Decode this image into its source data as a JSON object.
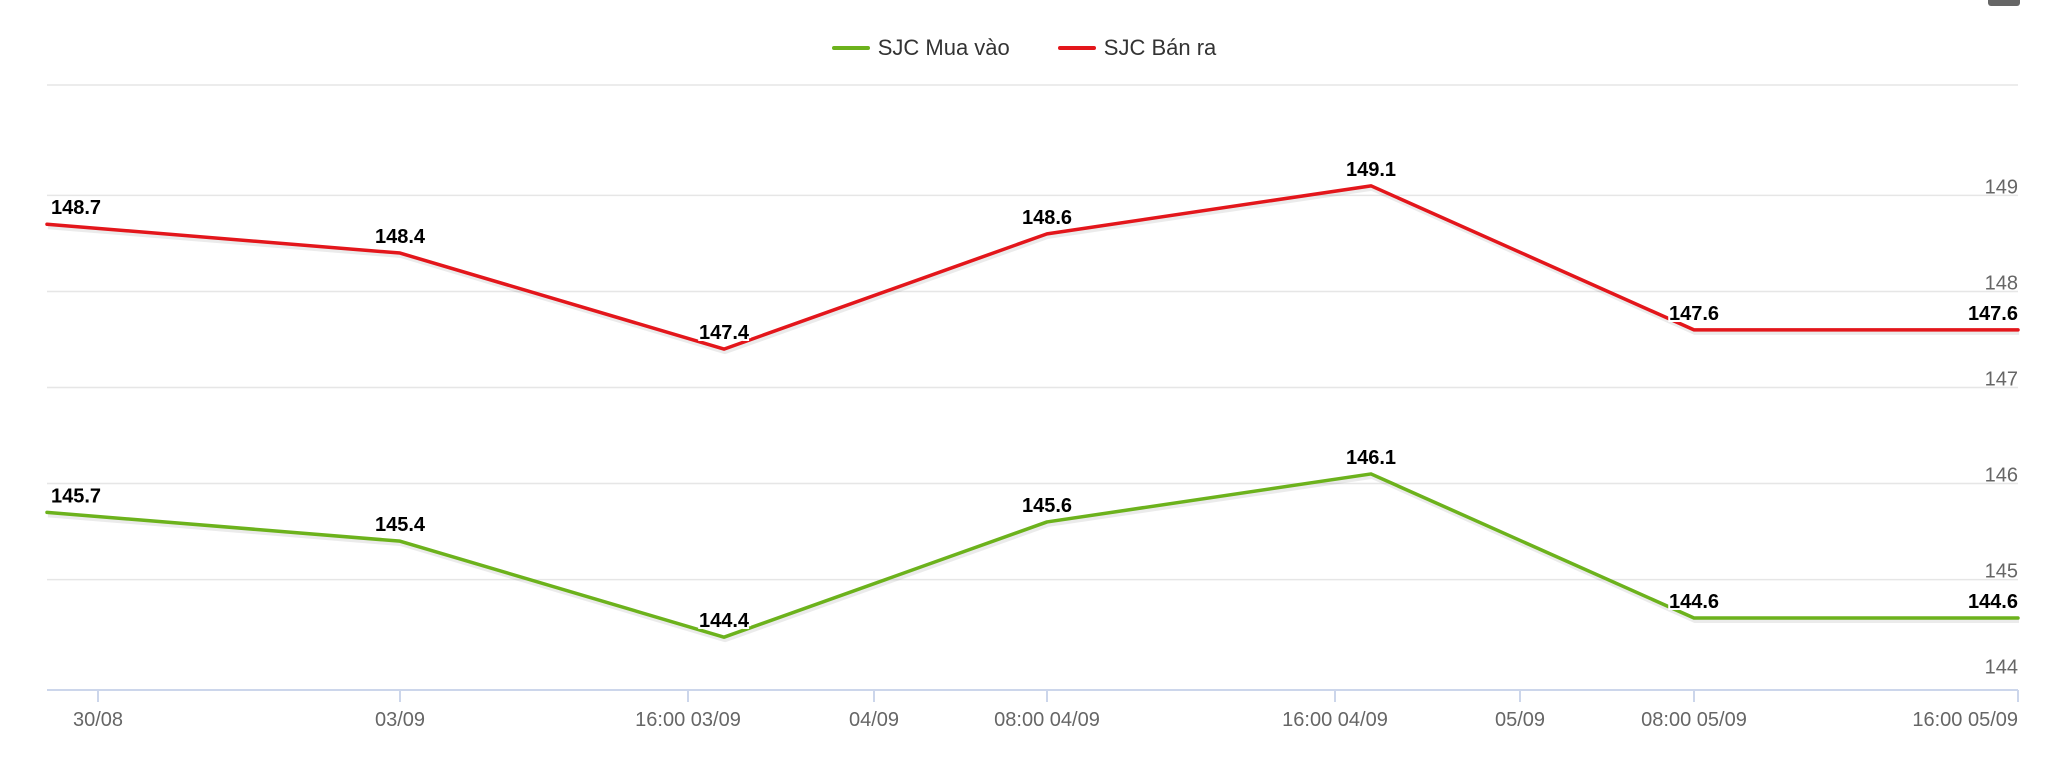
{
  "chart_data": {
    "type": "line",
    "title": "",
    "xlabel": "",
    "ylabel": "",
    "ylim": [
      143.85,
      150.15
    ],
    "y_ticks": [
      144,
      145,
      146,
      147,
      148,
      149
    ],
    "y_tick_labels": [
      "144",
      "145",
      "146",
      "147",
      "148",
      "149"
    ],
    "x_tick_labels": [
      "30/08",
      "03/09",
      "16:00 03/09",
      "04/09",
      "08:00 04/09",
      "16:00 04/09",
      "05/09",
      "08:00 05/09",
      "16:00 05/09"
    ],
    "point_labels": [
      "",
      "03/09",
      "16:00 03/09",
      "08:00 04/09",
      "16:00 04/09",
      "08:00 05/09",
      "16:00 05/09"
    ],
    "grid": true,
    "legend_position": "top-center",
    "series": [
      {
        "name": "SJC Mua vào",
        "color": "#6cb21c",
        "values": [
          145.7,
          145.4,
          144.4,
          145.6,
          146.1,
          144.6,
          144.6
        ],
        "labels": [
          "145.7",
          "145.4",
          "144.4",
          "145.6",
          "146.1",
          "144.6",
          "144.6"
        ]
      },
      {
        "name": "SJC Bán ra",
        "color": "#e3161b",
        "values": [
          148.7,
          148.4,
          147.4,
          148.6,
          149.1,
          147.6,
          147.6
        ],
        "labels": [
          "148.7",
          "148.4",
          "147.4",
          "148.6",
          "149.1",
          "147.6",
          "147.6"
        ]
      }
    ]
  },
  "colors": {
    "grid": "#e6e6e6",
    "axis": "#ccd6eb",
    "tick_text": "#666666",
    "label_text": "#000000"
  }
}
